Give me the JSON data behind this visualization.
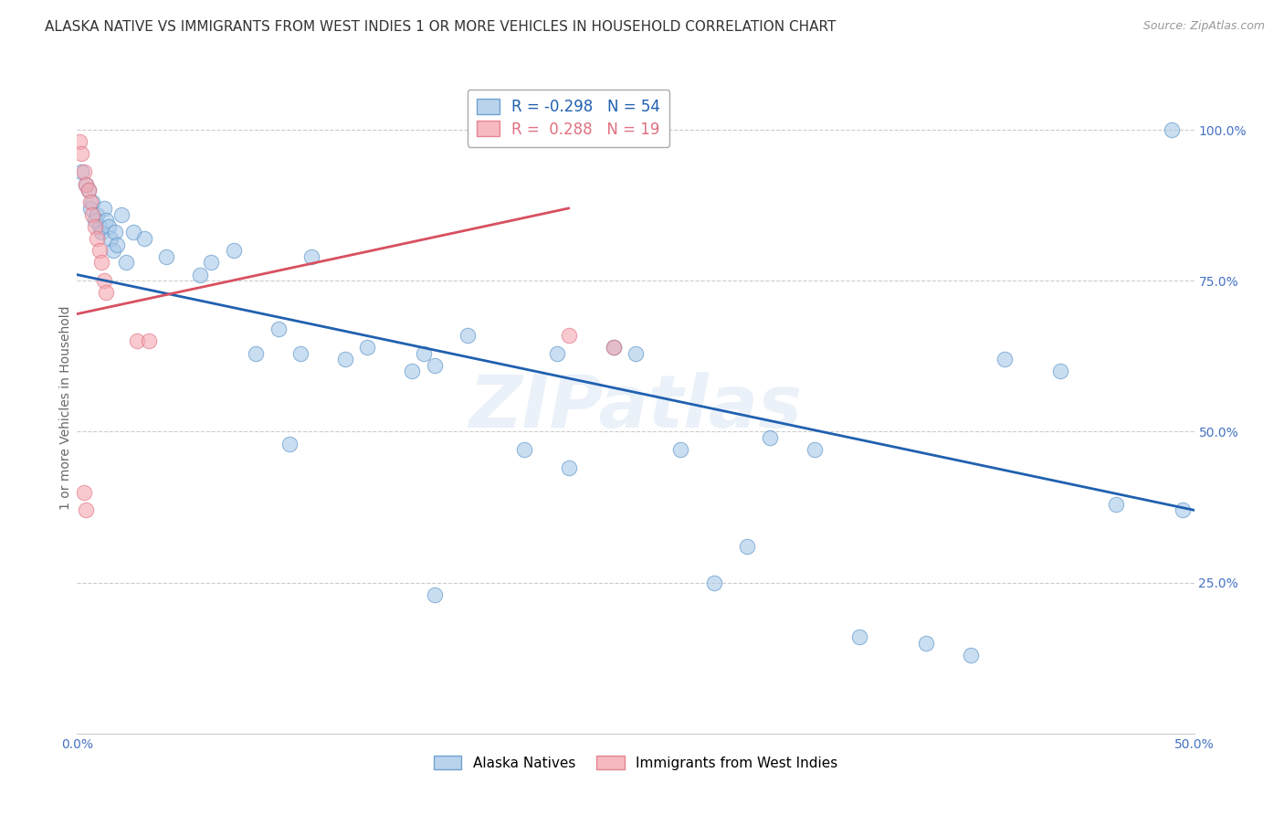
{
  "title": "ALASKA NATIVE VS IMMIGRANTS FROM WEST INDIES 1 OR MORE VEHICLES IN HOUSEHOLD CORRELATION CHART",
  "source": "Source: ZipAtlas.com",
  "ylabel": "1 or more Vehicles in Household",
  "xlim": [
    0.0,
    0.5
  ],
  "ylim": [
    0.0,
    1.08
  ],
  "xticks": [
    0.0,
    0.1,
    0.2,
    0.3,
    0.4,
    0.5
  ],
  "xticklabels": [
    "0.0%",
    "",
    "",
    "",
    "",
    "50.0%"
  ],
  "yticks": [
    0.25,
    0.5,
    0.75,
    1.0
  ],
  "yticklabels": [
    "25.0%",
    "50.0%",
    "75.0%",
    "100.0%"
  ],
  "blue_scatter_x": [
    0.002,
    0.004,
    0.005,
    0.006,
    0.007,
    0.008,
    0.009,
    0.01,
    0.011,
    0.012,
    0.013,
    0.014,
    0.015,
    0.016,
    0.017,
    0.018,
    0.02,
    0.022,
    0.025,
    0.03,
    0.04,
    0.055,
    0.06,
    0.07,
    0.08,
    0.09,
    0.1,
    0.105,
    0.12,
    0.13,
    0.15,
    0.155,
    0.16,
    0.175,
    0.2,
    0.215,
    0.22,
    0.24,
    0.25,
    0.27,
    0.3,
    0.31,
    0.33,
    0.38,
    0.4,
    0.415,
    0.44,
    0.465,
    0.49,
    0.495,
    0.16,
    0.095,
    0.285,
    0.35
  ],
  "blue_scatter_y": [
    0.93,
    0.91,
    0.9,
    0.87,
    0.88,
    0.85,
    0.86,
    0.84,
    0.83,
    0.87,
    0.85,
    0.84,
    0.82,
    0.8,
    0.83,
    0.81,
    0.86,
    0.78,
    0.83,
    0.82,
    0.79,
    0.76,
    0.78,
    0.8,
    0.63,
    0.67,
    0.63,
    0.79,
    0.62,
    0.64,
    0.6,
    0.63,
    0.61,
    0.66,
    0.47,
    0.63,
    0.44,
    0.64,
    0.63,
    0.47,
    0.31,
    0.49,
    0.47,
    0.15,
    0.13,
    0.62,
    0.6,
    0.38,
    1.0,
    0.37,
    0.23,
    0.48,
    0.25,
    0.16
  ],
  "pink_scatter_x": [
    0.001,
    0.002,
    0.003,
    0.004,
    0.005,
    0.006,
    0.007,
    0.008,
    0.009,
    0.01,
    0.011,
    0.012,
    0.013,
    0.003,
    0.004,
    0.027,
    0.032,
    0.22,
    0.24
  ],
  "pink_scatter_y": [
    0.98,
    0.96,
    0.93,
    0.91,
    0.9,
    0.88,
    0.86,
    0.84,
    0.82,
    0.8,
    0.78,
    0.75,
    0.73,
    0.4,
    0.37,
    0.65,
    0.65,
    0.66,
    0.64
  ],
  "blue_line_x0": 0.0,
  "blue_line_x1": 0.5,
  "blue_line_y0": 0.76,
  "blue_line_y1": 0.37,
  "pink_line_x0": 0.0,
  "pink_line_x1": 0.22,
  "pink_line_y0": 0.695,
  "pink_line_y1": 0.87,
  "blue_marker_color": "#a8c8e8",
  "blue_edge_color": "#5590c8",
  "pink_marker_color": "#f4a8b0",
  "pink_edge_color": "#e07080",
  "blue_line_color": "#2060b0",
  "pink_line_color": "#d85060",
  "legend_blue_r": "-0.298",
  "legend_blue_n": "54",
  "legend_pink_r": "0.288",
  "legend_pink_n": "19",
  "watermark": "ZIPatlas",
  "legend1_label": "Alaska Natives",
  "legend2_label": "Immigrants from West Indies",
  "background_color": "#ffffff",
  "grid_color": "#cccccc",
  "title_fontsize": 11,
  "axis_label_fontsize": 10,
  "tick_fontsize": 10,
  "tick_color": "#4472c4",
  "title_color": "#333333",
  "source_color": "#999999"
}
